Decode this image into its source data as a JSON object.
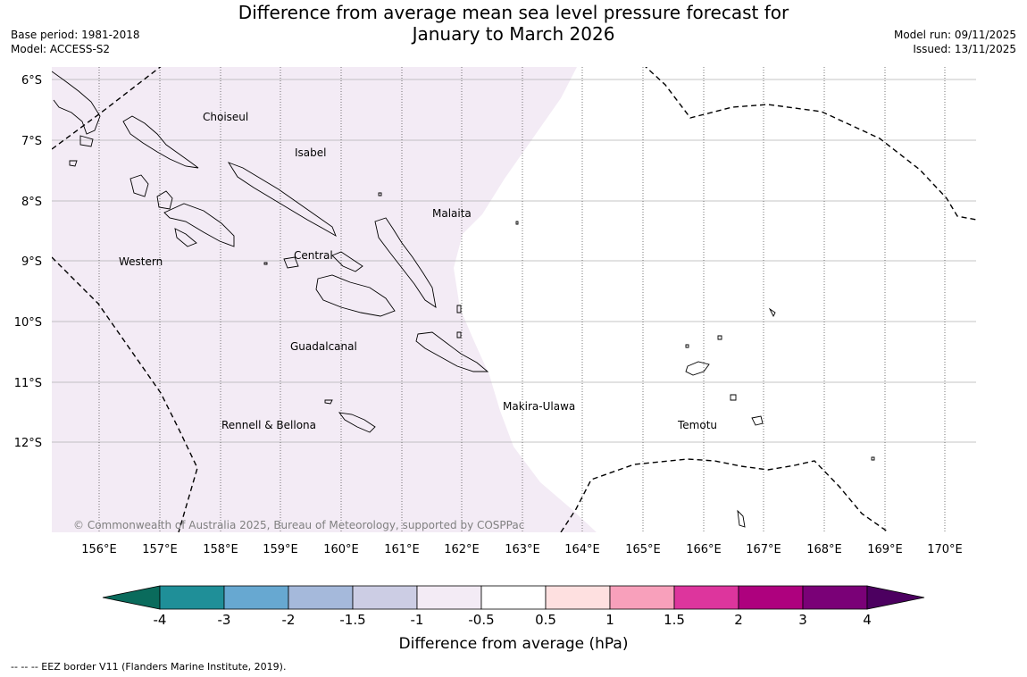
{
  "header": {
    "title_line1": "Difference from average mean sea level pressure forecast for",
    "title_line2": "January to March 2026",
    "base_period": "Base period: 1981-2018",
    "model": "Model: ACCESS-S2",
    "model_run": "Model run: 09/11/2025",
    "issued": "Issued: 13/11/2025"
  },
  "map": {
    "lat_labels": [
      "6°S",
      "7°S",
      "8°S",
      "9°S",
      "10°S",
      "11°S",
      "12°S"
    ],
    "lon_labels": [
      "156°E",
      "157°E",
      "158°E",
      "159°E",
      "160°E",
      "161°E",
      "162°E",
      "163°E",
      "164°E",
      "165°E",
      "166°E",
      "167°E",
      "168°E",
      "169°E",
      "170°E"
    ],
    "regions": [
      "Choiseul",
      "Isabel",
      "Malaita",
      "Western",
      "Central",
      "Guadalcanal",
      "Makira-Ulawa",
      "Rennell & Bellona",
      "Temotu"
    ],
    "shaded_category": "-1 to -0.5",
    "copyright": "© Commonwealth of Australia 2025, Bureau of Meteorology, supported by COSPPac"
  },
  "colorbar": {
    "title": "Difference from average (hPa)",
    "tick_labels": [
      "-4",
      "-3",
      "-2",
      "-1.5",
      "-1",
      "-0.5",
      "0.5",
      "1",
      "1.5",
      "2",
      "3",
      "4"
    ],
    "colors": {
      "below_min": "#0a6b5c",
      "band_-4_-3": "#1f8f98",
      "band_-3_-2": "#67a8d1",
      "band_-2_-1.5": "#a5b9db",
      "band_-1.5_-1": "#cccde4",
      "band_-1_-0.5": "#f3ebf5",
      "band_-0.5_0.5": "#ffffff",
      "band_0.5_1": "#fee0e0",
      "band_1_1.5": "#f8a0bb",
      "band_1.5_2": "#dd359d",
      "band_2_3": "#ae017e",
      "band_3_4": "#7a0177",
      "above_max": "#4c0060"
    }
  },
  "footnote": "--  --  -- EEZ border V11 (Flanders Marine Institute, 2019)."
}
